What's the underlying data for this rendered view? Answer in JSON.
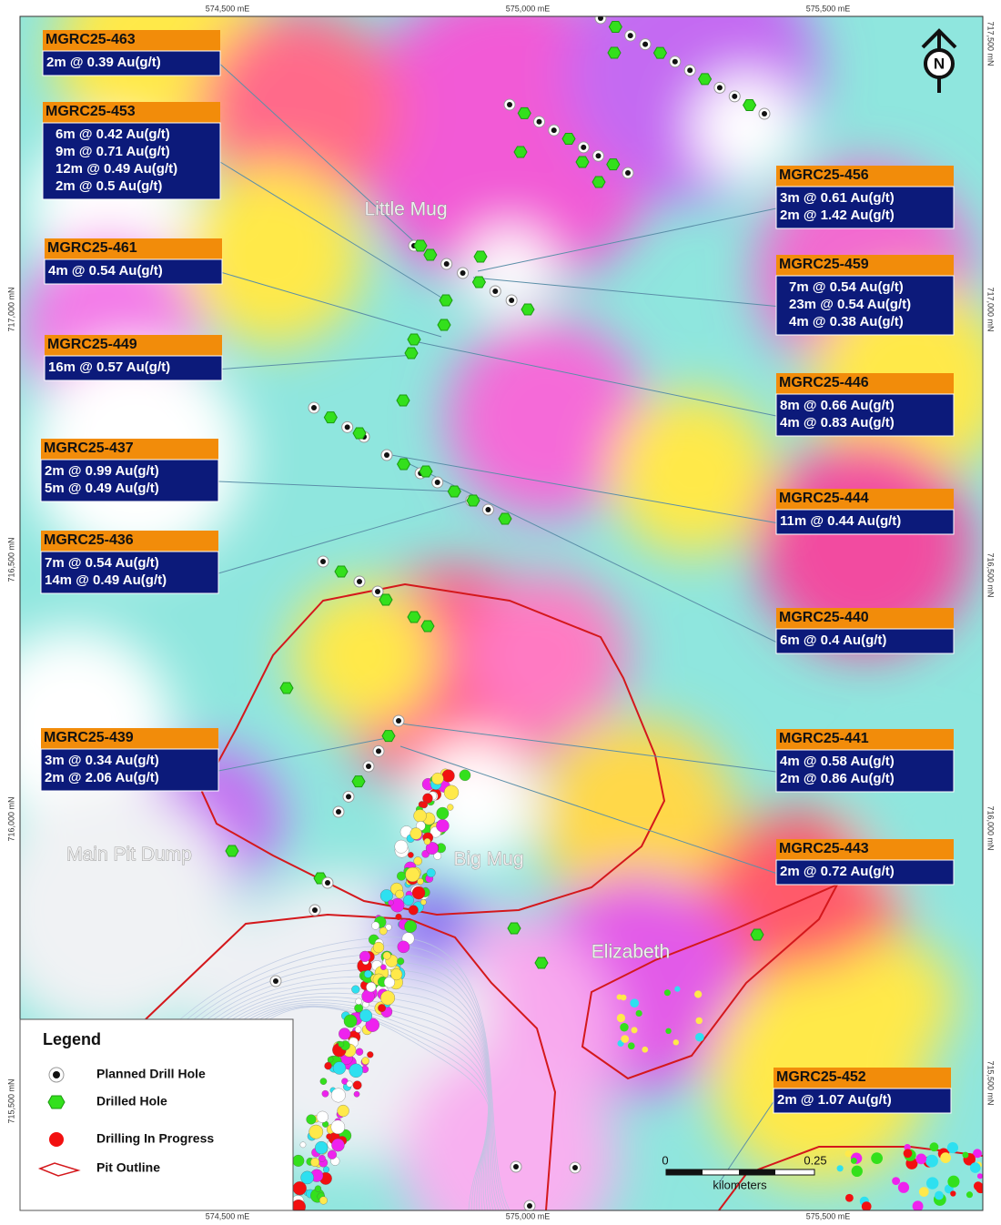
{
  "north": "N",
  "grid": {
    "top": [
      "574,500 mE",
      "575,000 mE",
      "575,500 mE"
    ],
    "bottom": [
      "574,500 mE",
      "575,000 mE",
      "575,500 mE"
    ],
    "left": [
      "717,000 mN",
      "716,500 mN",
      "716,000 mN",
      "715,500 mN"
    ],
    "right": [
      "717,500 mN",
      "717,000 mN",
      "716,500 mN",
      "716,000 mN",
      "715,500 mN"
    ]
  },
  "places": [
    "Little Mug",
    "Big Mug",
    "Main Pit Dump",
    "Elizabeth"
  ],
  "callouts": [
    {
      "id": "MGRC25-463",
      "results": [
        "2m @ 0.39 Au(g/t)"
      ]
    },
    {
      "id": "MGRC25-453",
      "results": [
        "6m @ 0.42 Au(g/t)",
        "9m @ 0.71 Au(g/t)",
        "12m @ 0.49 Au(g/t)",
        "2m @ 0.5 Au(g/t)"
      ]
    },
    {
      "id": "MGRC25-461",
      "results": [
        "4m @ 0.54 Au(g/t)"
      ]
    },
    {
      "id": "MGRC25-449",
      "results": [
        "16m @ 0.57 Au(g/t)"
      ]
    },
    {
      "id": "MGRC25-437",
      "results": [
        "2m @ 0.99 Au(g/t)",
        "5m @ 0.49 Au(g/t)"
      ]
    },
    {
      "id": "MGRC25-436",
      "results": [
        "7m @ 0.54 Au(g/t)",
        "14m @ 0.49 Au(g/t)"
      ]
    },
    {
      "id": "MGRC25-439",
      "results": [
        "3m @ 0.34 Au(g/t)",
        "2m @ 2.06 Au(g/t)"
      ]
    },
    {
      "id": "MGRC25-456",
      "results": [
        "3m @ 0.61 Au(g/t)",
        "2m @ 1.42 Au(g/t)"
      ]
    },
    {
      "id": "MGRC25-459",
      "results": [
        "7m @ 0.54 Au(g/t)",
        "23m @ 0.54 Au(g/t)",
        "4m @ 0.38 Au(g/t)"
      ]
    },
    {
      "id": "MGRC25-446",
      "results": [
        "8m @ 0.66 Au(g/t)",
        "4m @ 0.83 Au(g/t)"
      ]
    },
    {
      "id": "MGRC25-444",
      "results": [
        "11m @ 0.44 Au(g/t)"
      ]
    },
    {
      "id": "MGRC25-440",
      "results": [
        "6m @ 0.4 Au(g/t)"
      ]
    },
    {
      "id": "MGRC25-441",
      "results": [
        "4m @ 0.58 Au(g/t)",
        "2m @ 0.86 Au(g/t)"
      ]
    },
    {
      "id": "MGRC25-443",
      "results": [
        "2m @ 0.72 Au(g/t)"
      ]
    },
    {
      "id": "MGRC25-452",
      "results": [
        "2m @ 1.07 Au(g/t)"
      ]
    }
  ],
  "legend": {
    "title": "Legend",
    "items": [
      "Planned Drill Hole",
      "Drilled Hole",
      "Drilling In Progress",
      "Pit Outline"
    ]
  },
  "scale": {
    "labels": [
      "0",
      "0.25"
    ],
    "unit": "kilometers"
  }
}
